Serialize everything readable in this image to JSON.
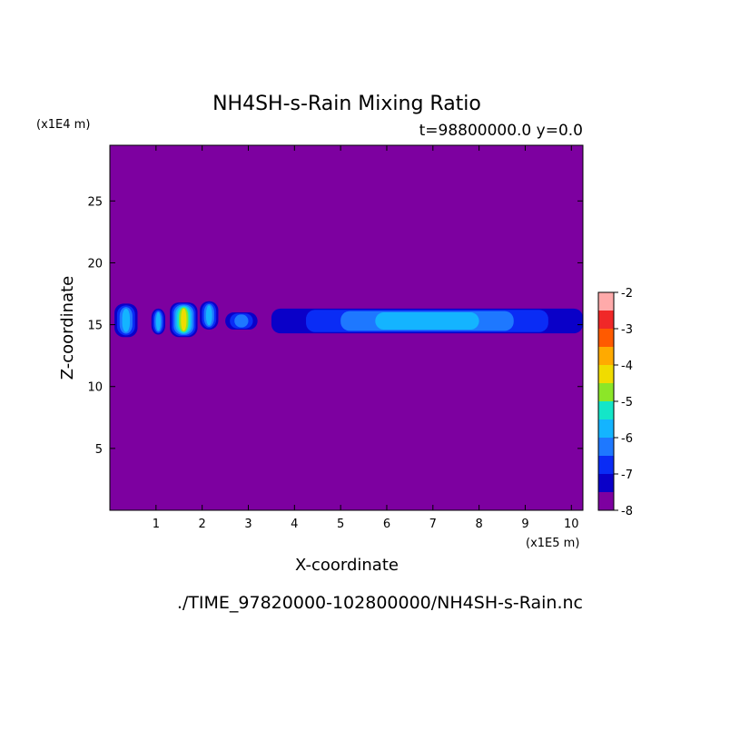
{
  "chart_data": {
    "type": "heatmap",
    "title": "NH4SH-s-Rain Mixing Ratio",
    "subtitle": "t=98800000.0 y=0.0",
    "xlabel": "X-coordinate",
    "ylabel": "Z-coordinate",
    "x_scale_label": "(x1E5 m)",
    "y_scale_label": "(x1E4 m)",
    "footer": "./TIME_97820000-102800000/NH4SH-s-Rain.nc",
    "xlim": [
      0,
      10.25
    ],
    "ylim": [
      0,
      29.5
    ],
    "x_ticks": [
      1,
      2,
      3,
      4,
      5,
      6,
      7,
      8,
      9,
      10
    ],
    "y_ticks": [
      5,
      10,
      15,
      20,
      25
    ],
    "colorbar": {
      "range": [
        -8,
        -2
      ],
      "tick_values": [
        -2,
        -3,
        -4,
        -5,
        -6,
        -7,
        -8
      ],
      "tick_labels": [
        "-2",
        "-3",
        "-4",
        "-5",
        "-6",
        "-7",
        "-8"
      ],
      "levels": [
        -8,
        -7.5,
        -7,
        -6.5,
        -6,
        -5.5,
        -5,
        -4.5,
        -4,
        -3.5,
        -3,
        -2.5,
        -2
      ],
      "colors": [
        "#7d00a0",
        "#0a00c8",
        "#0a2cf5",
        "#1e78ff",
        "#14b4ff",
        "#14e6c8",
        "#8ce628",
        "#f0dc00",
        "#ffaa00",
        "#ff5a00",
        "#f02828",
        "#ffaaaa"
      ]
    },
    "background_level": -8,
    "features": [
      {
        "x": [
          0.1,
          0.6
        ],
        "z": [
          14.0,
          16.7
        ],
        "peak": -6.0
      },
      {
        "x": [
          0.9,
          1.2
        ],
        "z": [
          14.2,
          16.3
        ],
        "peak": -6.0
      },
      {
        "x": [
          1.3,
          1.9
        ],
        "z": [
          14.0,
          16.8
        ],
        "peak": -4.5
      },
      {
        "x": [
          1.95,
          2.35
        ],
        "z": [
          14.6,
          16.9
        ],
        "peak": -6.0
      },
      {
        "x": [
          2.5,
          3.2
        ],
        "z": [
          14.6,
          16.0
        ],
        "peak": -6.5
      },
      {
        "x": [
          3.5,
          10.25
        ],
        "z": [
          14.3,
          16.3
        ],
        "peak": -6.0
      }
    ]
  }
}
